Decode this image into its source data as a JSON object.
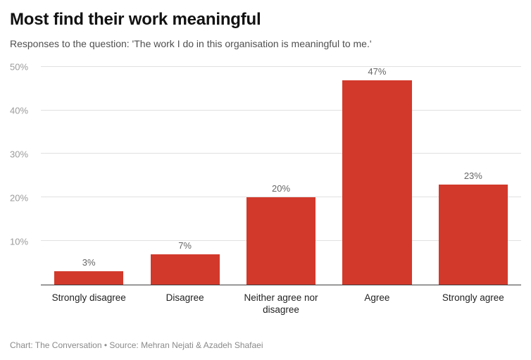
{
  "header": {
    "title": "Most find their work meaningful",
    "subtitle": "Responses to the question: 'The work I do in this organisation is meaningful to me.'"
  },
  "footer": {
    "credit": "Chart: The Conversation • Source: Mehran Nejati & Azadeh Shafaei"
  },
  "chart_data": {
    "type": "bar",
    "title": "Most find their work meaningful",
    "subtitle": "Responses to the question: 'The work I do in this organisation is meaningful to me.'",
    "categories": [
      "Strongly disagree",
      "Disagree",
      "Neither agree nor disagree",
      "Agree",
      "Strongly agree"
    ],
    "values": [
      3,
      7,
      20,
      47,
      23
    ],
    "value_labels": [
      "3%",
      "7%",
      "20%",
      "47%",
      "23%"
    ],
    "xlabel": "",
    "ylabel": "",
    "ylim": [
      0,
      50
    ],
    "yticks": [
      10,
      20,
      30,
      40,
      50
    ],
    "ytick_labels": [
      "10%",
      "20%",
      "30%",
      "40%",
      "50%"
    ],
    "grid": true,
    "legend": "none",
    "bar_color": "#d2392b",
    "axis_line_color": "#3f3f3f",
    "gridline_color": "#e0e0e0"
  }
}
